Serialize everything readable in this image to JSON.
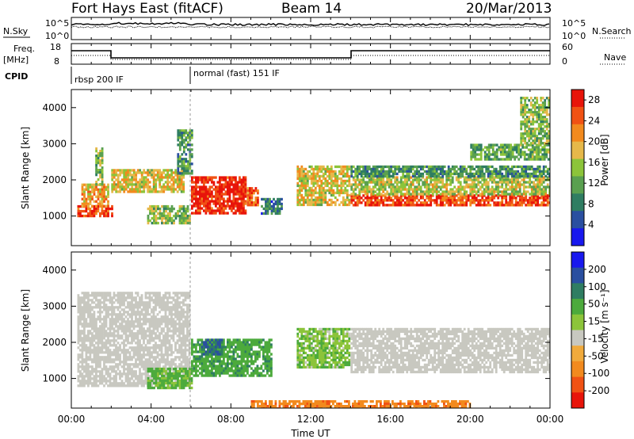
{
  "header": {
    "station": "Fort Hays East (fitACF)",
    "beam": "Beam 14",
    "date": "20/Mar/2013"
  },
  "strip_labels": {
    "nsky": "N.Sky",
    "nsky_max": "10^5",
    "nsky_min": "10^0",
    "nsearch": "N.Search",
    "nsearch_max": "10^5",
    "nsearch_min": "10^0",
    "freq": "Freq.",
    "freq_unit": "[MHz]",
    "freq_max": "18",
    "freq_min": "8",
    "nave": "Nave",
    "nave_max": "60",
    "nave_min": "0",
    "cpid": "CPID",
    "cpid_mode_1": "rbsp 200 IF",
    "cpid_mode_2": "normal (fast) 151 IF"
  },
  "colors": {
    "power_scale": [
      "#1818ee",
      "#2a4fa0",
      "#2f7d62",
      "#5aa050",
      "#8cc43a",
      "#e6b84a",
      "#f28a1e",
      "#f05214",
      "#e8140a"
    ],
    "velocity_scale": [
      "#e8140a",
      "#f05214",
      "#f28a1e",
      "#f0aa3c",
      "#c8c8c0",
      "#8cc43a",
      "#4caa3c",
      "#2f7d62",
      "#2a4fa0",
      "#1818ee"
    ],
    "groundscatter": "#c8c8c0"
  },
  "chart_data": {
    "type": "heatmap",
    "x_axis": {
      "label": "Time UT",
      "range_hours": [
        0,
        24
      ],
      "ticks": [
        "00:00",
        "04:00",
        "08:00",
        "12:00",
        "16:00",
        "20:00",
        "00:00"
      ],
      "tick_values_hours": [
        0,
        4,
        8,
        12,
        16,
        20,
        24
      ],
      "minor_tick_every_hours": 1
    },
    "panels": [
      {
        "name": "power",
        "ylabel": "Slant Range [km]",
        "ylim": [
          180,
          4500
        ],
        "yticks": [
          "1000",
          "2000",
          "3000",
          "4000"
        ],
        "ytick_values": [
          1000,
          2000,
          3000,
          4000
        ],
        "colorbar": {
          "label": "Power [dB]",
          "range": [
            0,
            30
          ],
          "ticks": [
            "4",
            "8",
            "12",
            "16",
            "20",
            "24",
            "28"
          ],
          "tick_values": [
            4,
            8,
            12,
            16,
            20,
            24,
            28
          ]
        },
        "echo_regions": [
          {
            "t": [
              0.3,
              2.0
            ],
            "range_km": [
              1000,
              1300
            ],
            "power_db": 26
          },
          {
            "t": [
              0.5,
              1.8
            ],
            "range_km": [
              1300,
              1900
            ],
            "power_db": 20
          },
          {
            "t": [
              1.2,
              1.5
            ],
            "range_km": [
              1900,
              2900
            ],
            "power_db": 14
          },
          {
            "t": [
              2.0,
              5.6
            ],
            "range_km": [
              1700,
              2300
            ],
            "power_db": 18
          },
          {
            "t": [
              3.8,
              5.9
            ],
            "range_km": [
              800,
              1300
            ],
            "power_db": 14
          },
          {
            "t": [
              5.3,
              6.0
            ],
            "range_km": [
              2200,
              3400
            ],
            "power_db": 10
          },
          {
            "t": [
              6.0,
              8.7
            ],
            "range_km": [
              1100,
              2100
            ],
            "power_db": 28
          },
          {
            "t": [
              8.8,
              9.3
            ],
            "range_km": [
              1300,
              1800
            ],
            "power_db": 24
          },
          {
            "t": [
              9.5,
              10.5
            ],
            "range_km": [
              1100,
              1500
            ],
            "power_db": 8
          },
          {
            "t": [
              11.3,
              13.9
            ],
            "range_km": [
              1300,
              2400
            ],
            "power_db": 18
          },
          {
            "t": [
              14.0,
              24.0
            ],
            "range_km": [
              1300,
              1600
            ],
            "power_db": 26
          },
          {
            "t": [
              14.0,
              24.0
            ],
            "range_km": [
              1600,
              2100
            ],
            "power_db": 16
          },
          {
            "t": [
              14.0,
              24.0
            ],
            "range_km": [
              2100,
              2400
            ],
            "power_db": 10
          },
          {
            "t": [
              20.0,
              24.0
            ],
            "range_km": [
              2600,
              3000
            ],
            "power_db": 12
          },
          {
            "t": [
              22.5,
              24.0
            ],
            "range_km": [
              3000,
              4300
            ],
            "power_db": 14
          }
        ]
      },
      {
        "name": "velocity",
        "ylabel": "Slant Range [km]",
        "ylim": [
          180,
          4500
        ],
        "yticks": [
          "1000",
          "2000",
          "3000",
          "4000"
        ],
        "ytick_values": [
          1000,
          2000,
          3000,
          4000
        ],
        "colorbar": {
          "label": "Velocity [m s⁻¹]",
          "range": [
            -250,
            250
          ],
          "ticks": [
            "200",
            "100",
            "50",
            "15",
            "-15",
            "-50",
            "-100",
            "-200"
          ],
          "tick_values": [
            200,
            100,
            50,
            15,
            -15,
            -50,
            -100,
            -200
          ]
        },
        "echo_regions": [
          {
            "t": [
              0.3,
              5.9
            ],
            "range_km": [
              800,
              3400
            ],
            "velocity": 0
          },
          {
            "t": [
              3.8,
              6.0
            ],
            "range_km": [
              750,
              1300
            ],
            "velocity": 60
          },
          {
            "t": [
              6.0,
              10.0
            ],
            "range_km": [
              1100,
              2100
            ],
            "velocity": 80
          },
          {
            "t": [
              6.5,
              7.5
            ],
            "range_km": [
              1700,
              2100
            ],
            "velocity": 200
          },
          {
            "t": [
              11.3,
              13.9
            ],
            "range_km": [
              1300,
              2400
            ],
            "velocity": 40
          },
          {
            "t": [
              14.0,
              24.0
            ],
            "range_km": [
              1200,
              2400
            ],
            "velocity": 0
          },
          {
            "t": [
              9.0,
              20.0
            ],
            "range_km": [
              180,
              400
            ],
            "velocity": -80
          }
        ]
      }
    ]
  }
}
